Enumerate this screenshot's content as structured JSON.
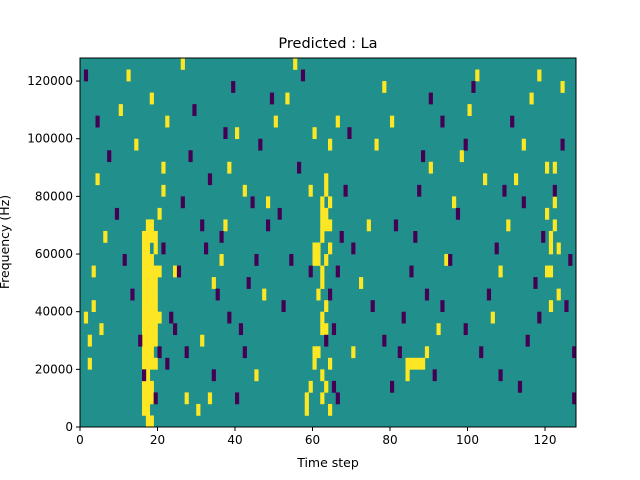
{
  "chart_data": {
    "type": "heatmap",
    "title": "Predicted : La",
    "xlabel": "Time step",
    "ylabel": "Frequency (Hz)",
    "xlim": [
      0,
      128
    ],
    "ylim": [
      0,
      128000
    ],
    "xticks": [
      0,
      20,
      40,
      60,
      80,
      100,
      120
    ],
    "yticks": [
      0,
      20000,
      40000,
      60000,
      80000,
      100000,
      120000
    ],
    "xtick_labels": [
      "0",
      "20",
      "40",
      "60",
      "80",
      "100",
      "120"
    ],
    "ytick_labels": [
      "0",
      "20000",
      "40000",
      "60000",
      "80000",
      "100000",
      "120000"
    ],
    "grid": false,
    "colormap": "viridis",
    "value_levels": [
      -1,
      0,
      1
    ],
    "colors": {
      "low": "#440154",
      "mid": "#21908d",
      "high": "#fde725"
    },
    "background_value": 0,
    "row_height_hz": 4000,
    "cells_high": [
      [
        16,
        1
      ],
      [
        16,
        2
      ],
      [
        16,
        3
      ],
      [
        16,
        4
      ],
      [
        16,
        5
      ],
      [
        16,
        6
      ],
      [
        16,
        7
      ],
      [
        16,
        8
      ],
      [
        16,
        9
      ],
      [
        16,
        10
      ],
      [
        16,
        11
      ],
      [
        16,
        12
      ],
      [
        16,
        13
      ],
      [
        16,
        14
      ],
      [
        16,
        15
      ],
      [
        16,
        16
      ],
      [
        17,
        0
      ],
      [
        17,
        1
      ],
      [
        17,
        2
      ],
      [
        17,
        3
      ],
      [
        17,
        4
      ],
      [
        17,
        5
      ],
      [
        17,
        6
      ],
      [
        17,
        7
      ],
      [
        17,
        8
      ],
      [
        17,
        9
      ],
      [
        17,
        10
      ],
      [
        17,
        11
      ],
      [
        17,
        12
      ],
      [
        17,
        13
      ],
      [
        17,
        14
      ],
      [
        17,
        15
      ],
      [
        17,
        16
      ],
      [
        17,
        17
      ],
      [
        18,
        0
      ],
      [
        18,
        2
      ],
      [
        18,
        3
      ],
      [
        18,
        5
      ],
      [
        18,
        6
      ],
      [
        18,
        7
      ],
      [
        18,
        8
      ],
      [
        18,
        9
      ],
      [
        18,
        10
      ],
      [
        18,
        11
      ],
      [
        18,
        12
      ],
      [
        18,
        13
      ],
      [
        18,
        14
      ],
      [
        18,
        16
      ],
      [
        18,
        17
      ],
      [
        19,
        5
      ],
      [
        19,
        7
      ],
      [
        19,
        8
      ],
      [
        19,
        9
      ],
      [
        19,
        10
      ],
      [
        19,
        11
      ],
      [
        19,
        12
      ],
      [
        19,
        13
      ],
      [
        19,
        15
      ],
      [
        19,
        16
      ],
      [
        20,
        9
      ],
      [
        20,
        13
      ],
      [
        20,
        18
      ],
      [
        21,
        20
      ],
      [
        21,
        22
      ],
      [
        60,
        5
      ],
      [
        60,
        6
      ],
      [
        60,
        14
      ],
      [
        60,
        15
      ],
      [
        61,
        6
      ],
      [
        61,
        11
      ],
      [
        61,
        14
      ],
      [
        61,
        15
      ],
      [
        62,
        2
      ],
      [
        62,
        4
      ],
      [
        62,
        8
      ],
      [
        62,
        9
      ],
      [
        62,
        12
      ],
      [
        62,
        13
      ],
      [
        62,
        16
      ],
      [
        62,
        17
      ],
      [
        62,
        18
      ],
      [
        62,
        19
      ],
      [
        63,
        3
      ],
      [
        63,
        8
      ],
      [
        63,
        10
      ],
      [
        63,
        14
      ],
      [
        63,
        17
      ],
      [
        63,
        18
      ],
      [
        63,
        20
      ],
      [
        63,
        21
      ],
      [
        64,
        1
      ],
      [
        64,
        5
      ],
      [
        64,
        15
      ],
      [
        64,
        17
      ],
      [
        64,
        19
      ],
      [
        64,
        24
      ],
      [
        58,
        1
      ],
      [
        58,
        2
      ],
      [
        59,
        3
      ],
      [
        59,
        20
      ],
      [
        60,
        25
      ],
      [
        84,
        4
      ],
      [
        84,
        5
      ],
      [
        85,
        5
      ],
      [
        86,
        5
      ],
      [
        87,
        5
      ],
      [
        88,
        5
      ],
      [
        89,
        6
      ],
      [
        120,
        13
      ],
      [
        120,
        18
      ],
      [
        120,
        22
      ],
      [
        121,
        10
      ],
      [
        121,
        13
      ],
      [
        121,
        15
      ],
      [
        121,
        16
      ],
      [
        122,
        17
      ],
      [
        122,
        19
      ],
      [
        122,
        22
      ],
      [
        123,
        11
      ],
      [
        123,
        15
      ],
      [
        1,
        9
      ],
      [
        2,
        5
      ],
      [
        2,
        7
      ],
      [
        3,
        10
      ],
      [
        3,
        13
      ],
      [
        4,
        21
      ],
      [
        5,
        8
      ],
      [
        6,
        16
      ],
      [
        24,
        13
      ],
      [
        27,
        2
      ],
      [
        30,
        1
      ],
      [
        31,
        7
      ],
      [
        33,
        2
      ],
      [
        34,
        12
      ],
      [
        36,
        14
      ],
      [
        37,
        17
      ],
      [
        38,
        22
      ],
      [
        40,
        25
      ],
      [
        45,
        4
      ],
      [
        47,
        11
      ],
      [
        48,
        19
      ],
      [
        50,
        26
      ],
      [
        53,
        28
      ],
      [
        70,
        6
      ],
      [
        72,
        12
      ],
      [
        74,
        17
      ],
      [
        76,
        24
      ],
      [
        78,
        29
      ],
      [
        92,
        8
      ],
      [
        94,
        14
      ],
      [
        96,
        19
      ],
      [
        98,
        23
      ],
      [
        100,
        27
      ],
      [
        102,
        30
      ],
      [
        106,
        9
      ],
      [
        108,
        13
      ],
      [
        110,
        17
      ],
      [
        112,
        21
      ],
      [
        114,
        24
      ],
      [
        116,
        28
      ],
      [
        118,
        30
      ],
      [
        10,
        27
      ],
      [
        12,
        30
      ],
      [
        14,
        24
      ],
      [
        18,
        28
      ],
      [
        22,
        26
      ],
      [
        26,
        31
      ],
      [
        42,
        20
      ],
      [
        55,
        31
      ],
      [
        66,
        26
      ],
      [
        80,
        26
      ],
      [
        90,
        22
      ],
      [
        104,
        21
      ],
      [
        124,
        29
      ]
    ],
    "cells_low": [
      [
        1,
        30
      ],
      [
        4,
        26
      ],
      [
        7,
        23
      ],
      [
        9,
        18
      ],
      [
        11,
        14
      ],
      [
        13,
        11
      ],
      [
        15,
        7
      ],
      [
        16,
        4
      ],
      [
        22,
        5
      ],
      [
        23,
        9
      ],
      [
        25,
        13
      ],
      [
        26,
        19
      ],
      [
        28,
        23
      ],
      [
        29,
        27
      ],
      [
        32,
        15
      ],
      [
        33,
        21
      ],
      [
        35,
        11
      ],
      [
        36,
        16
      ],
      [
        37,
        25
      ],
      [
        39,
        29
      ],
      [
        40,
        2
      ],
      [
        41,
        8
      ],
      [
        43,
        12
      ],
      [
        44,
        19
      ],
      [
        46,
        24
      ],
      [
        49,
        28
      ],
      [
        51,
        18
      ],
      [
        52,
        10
      ],
      [
        54,
        14
      ],
      [
        56,
        22
      ],
      [
        57,
        30
      ],
      [
        63,
        7
      ],
      [
        64,
        11
      ],
      [
        65,
        3
      ],
      [
        65,
        8
      ],
      [
        66,
        2
      ],
      [
        66,
        13
      ],
      [
        67,
        16
      ],
      [
        68,
        20
      ],
      [
        69,
        25
      ],
      [
        80,
        3
      ],
      [
        82,
        6
      ],
      [
        83,
        9
      ],
      [
        85,
        13
      ],
      [
        86,
        16
      ],
      [
        87,
        20
      ],
      [
        88,
        23
      ],
      [
        90,
        28
      ],
      [
        91,
        4
      ],
      [
        93,
        10
      ],
      [
        95,
        14
      ],
      [
        97,
        18
      ],
      [
        99,
        24
      ],
      [
        101,
        29
      ],
      [
        103,
        6
      ],
      [
        105,
        11
      ],
      [
        107,
        15
      ],
      [
        109,
        20
      ],
      [
        111,
        26
      ],
      [
        113,
        3
      ],
      [
        115,
        7
      ],
      [
        117,
        12
      ],
      [
        119,
        16
      ],
      [
        122,
        20
      ],
      [
        124,
        24
      ],
      [
        125,
        10
      ],
      [
        126,
        14
      ],
      [
        127,
        2
      ],
      [
        127,
        6
      ],
      [
        19,
        2
      ],
      [
        20,
        6
      ],
      [
        21,
        15
      ],
      [
        24,
        8
      ],
      [
        27,
        6
      ],
      [
        31,
        17
      ],
      [
        34,
        4
      ],
      [
        38,
        9
      ],
      [
        42,
        6
      ],
      [
        45,
        14
      ],
      [
        48,
        17
      ],
      [
        59,
        13
      ],
      [
        70,
        15
      ],
      [
        75,
        10
      ],
      [
        78,
        7
      ],
      [
        81,
        17
      ],
      [
        89,
        11
      ],
      [
        93,
        26
      ],
      [
        99,
        8
      ],
      [
        108,
        4
      ],
      [
        114,
        19
      ],
      [
        118,
        9
      ]
    ]
  }
}
